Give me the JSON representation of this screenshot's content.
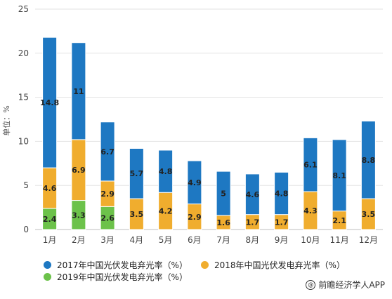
{
  "chart_data": {
    "type": "bar",
    "stacked": true,
    "categories": [
      "1月",
      "2月",
      "3月",
      "4月",
      "5月",
      "6月",
      "7月",
      "8月",
      "9月",
      "10月",
      "11月",
      "12月"
    ],
    "series": [
      {
        "name": "2019年中国光伏发电弃光率（%）",
        "color": "#6cc24a",
        "values": [
          2.4,
          3.3,
          2.6,
          null,
          null,
          null,
          null,
          null,
          null,
          null,
          null,
          null
        ]
      },
      {
        "name": "2018年中国光伏发电弃光率（%）",
        "color": "#f0ad2e",
        "values": [
          4.6,
          6.9,
          2.9,
          3.5,
          4.2,
          2.9,
          1.6,
          1.7,
          1.7,
          4.3,
          2.1,
          3.5
        ]
      },
      {
        "name": "2017年中国光伏发电弃光率（%）",
        "color": "#1e78c2",
        "values": [
          14.8,
          11,
          6.7,
          5.7,
          4.8,
          4.9,
          5,
          4.6,
          4.8,
          6.1,
          8.1,
          8.8
        ]
      }
    ],
    "ylabel": "单位：%",
    "ylim": [
      0,
      25
    ],
    "yticks": [
      0,
      5,
      10,
      15,
      20,
      25
    ],
    "grid": true,
    "legend_position": "bottom"
  },
  "legend": {
    "item_2017": "2017年中国光伏发电弃光率（%）",
    "item_2018": "2018年中国光伏发电弃光率（%）",
    "item_2019": "2019年中国光伏发电弃光率（%）"
  },
  "credit": {
    "text": "前瞻经济学人APP",
    "badge": "@"
  }
}
